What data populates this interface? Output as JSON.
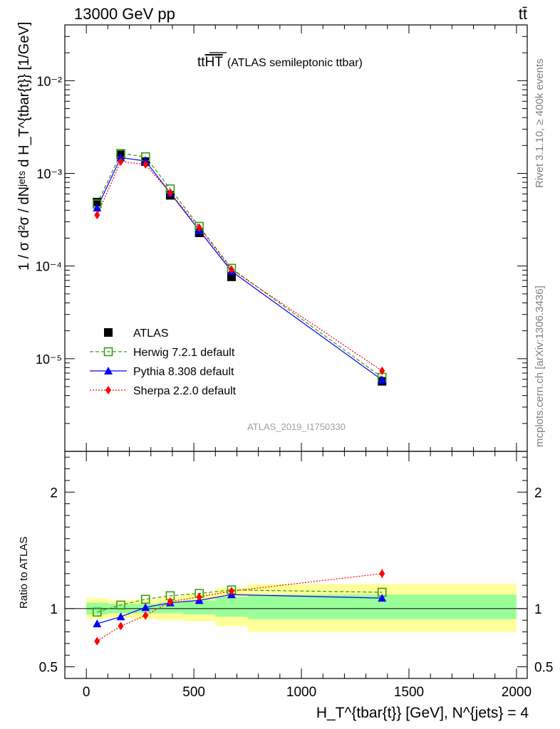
{
  "header": {
    "left": "13000 GeV pp",
    "right": "tt̄"
  },
  "side_labels": {
    "rivet": "Rivet 3.1.10, ≥ 400k events",
    "mcplots": "mcplots.cern.ch [arXiv:1306.3436]"
  },
  "chart_data": [
    {
      "type": "scatter",
      "title": "(ATLAS semileptonic ttbar)",
      "title_symbol": "tt",
      "title_symbol_overline": "HT",
      "watermark": "ATLAS_2019_I1750330",
      "ylabel": "1 / σ d²σ / dNʲᵉᵗˢ d H_T^{tbar{t}} [1/GeV]",
      "xlim": [
        -100,
        2050
      ],
      "ylim": [
        1e-06,
        0.04
      ],
      "yscale": "log",
      "ytick_labels": [
        "10⁻⁵",
        "10⁻⁴",
        "10⁻³",
        "10⁻²"
      ],
      "legend_position": "lower-left",
      "x": [
        50,
        160,
        275,
        390,
        525,
        675,
        1375
      ],
      "series": [
        {
          "name": "ATLAS",
          "marker": "square-filled",
          "color": "#000000",
          "line": "none",
          "values": [
            0.00049,
            0.00159,
            0.00134,
            0.00058,
            0.000228,
            7.65e-05,
            5.7e-06
          ]
        },
        {
          "name": "Herwig 7.2.1 default",
          "marker": "square-open",
          "color": "#3a9a1c",
          "line": "dashed",
          "values": [
            0.000468,
            0.00164,
            0.00151,
            0.00068,
            0.000268,
            9.45e-05,
            6.3e-06
          ]
        },
        {
          "name": "Pythia 8.308 default",
          "marker": "triangle",
          "color": "#0000ff",
          "line": "solid",
          "values": [
            0.000425,
            0.00148,
            0.00136,
            0.000614,
            0.000242,
            8.78e-05,
            5.9e-06
          ]
        },
        {
          "name": "Sherpa 2.2.0 default",
          "marker": "diamond",
          "color": "#ff0000",
          "line": "dotted",
          "values": [
            0.000355,
            0.00134,
            0.00125,
            0.000617,
            0.000259,
            9.16e-05,
            7.4e-06
          ]
        }
      ]
    },
    {
      "type": "line",
      "ylabel": "Ratio to ATLAS",
      "xlabel": "H_T^{tbar{t}} [GeV], N^{jets} = 4",
      "xlim": [
        -100,
        2050
      ],
      "ylim": [
        0.4,
        2.35
      ],
      "x_ticks": [
        0,
        500,
        1000,
        1500,
        2000
      ],
      "x_tick_labels": [
        "0",
        "500",
        "1000",
        "1500",
        "2000"
      ],
      "y_tick_labels": [
        "0.5",
        "1",
        "2"
      ],
      "bands": {
        "bin_edges": [
          0,
          100,
          220,
          330,
          450,
          600,
          750,
          2000
        ],
        "green_low": [
          0.95,
          0.96,
          0.96,
          0.96,
          0.95,
          0.93,
          0.91
        ],
        "green_high": [
          1.05,
          1.04,
          1.04,
          1.05,
          1.07,
          1.1,
          1.12
        ],
        "yellow_low": [
          0.91,
          0.92,
          0.91,
          0.9,
          0.89,
          0.85,
          0.8
        ],
        "yellow_high": [
          1.09,
          1.07,
          1.08,
          1.1,
          1.13,
          1.18,
          1.21
        ]
      },
      "x": [
        50,
        160,
        275,
        390,
        525,
        675,
        1375
      ],
      "series": [
        {
          "name": "Herwig 7.2.1 default",
          "marker": "square-open",
          "color": "#3a9a1c",
          "line": "dashed",
          "values": [
            0.97,
            1.03,
            1.08,
            1.11,
            1.13,
            1.16,
            1.14
          ]
        },
        {
          "name": "Pythia 8.308 default",
          "marker": "triangle",
          "color": "#0000ff",
          "line": "solid",
          "values": [
            0.87,
            0.93,
            1.01,
            1.05,
            1.07,
            1.12,
            1.09
          ]
        },
        {
          "name": "Sherpa 2.2.0 default",
          "marker": "diamond",
          "color": "#ff0000",
          "line": "dotted",
          "values": [
            0.72,
            0.85,
            0.94,
            1.06,
            1.1,
            1.15,
            1.3
          ]
        }
      ]
    }
  ]
}
